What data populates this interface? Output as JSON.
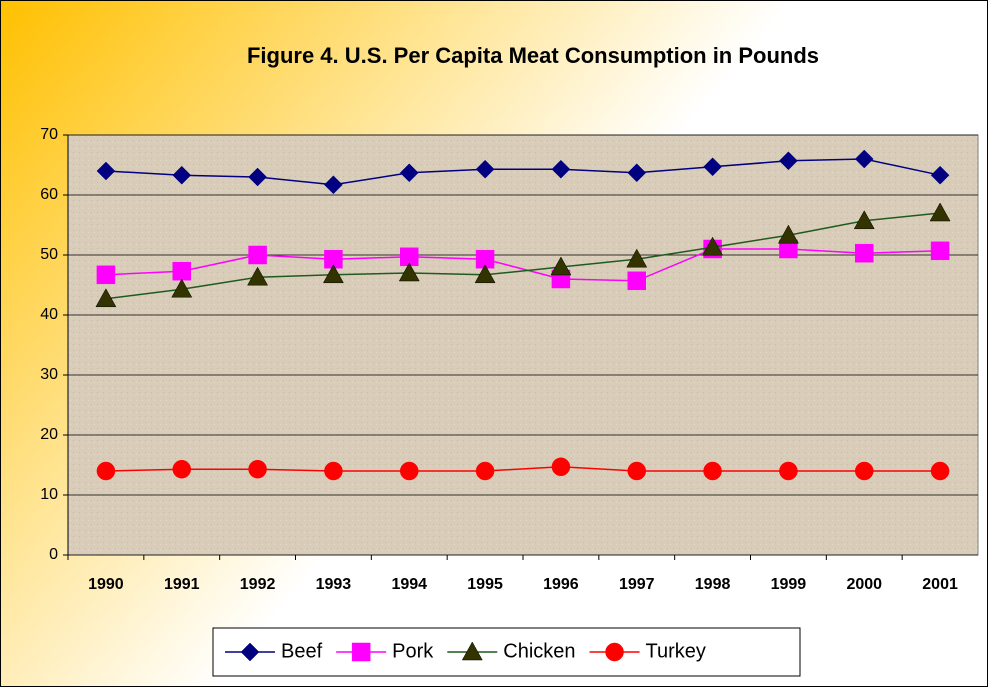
{
  "chart_data": {
    "type": "line",
    "title": "Figure 4. U.S. Per Capita Meat Consumption in Pounds",
    "categories": [
      "1990",
      "1991",
      "1992",
      "1993",
      "1994",
      "1995",
      "1996",
      "1997",
      "1998",
      "1999",
      "2000",
      "2001"
    ],
    "series": [
      {
        "name": "Beef",
        "color": "#000080",
        "marker": "diamond",
        "values": [
          64,
          63.3,
          63,
          61.7,
          63.7,
          64.3,
          64.3,
          63.7,
          64.7,
          65.7,
          66,
          63.3
        ]
      },
      {
        "name": "Pork",
        "color": "#ff00ff",
        "marker": "square",
        "values": [
          46.7,
          47.3,
          50,
          49.3,
          49.7,
          49.3,
          46,
          45.7,
          51,
          51,
          50.3,
          50.7
        ]
      },
      {
        "name": "Chicken",
        "color": "#333300",
        "marker": "triangle",
        "values": [
          42.7,
          44.3,
          46.3,
          46.7,
          47,
          46.7,
          48,
          49.3,
          51.3,
          53.3,
          55.7,
          57
        ]
      },
      {
        "name": "Turkey",
        "color": "#ff0000",
        "marker": "circle",
        "values": [
          14,
          14.3,
          14.3,
          14,
          14,
          14,
          14.7,
          14,
          14,
          14,
          14,
          14
        ]
      }
    ],
    "ylim": [
      0,
      70
    ],
    "yticks": [
      0,
      10,
      20,
      30,
      40,
      50,
      60,
      70
    ],
    "grid": true,
    "legend": "bottom"
  }
}
